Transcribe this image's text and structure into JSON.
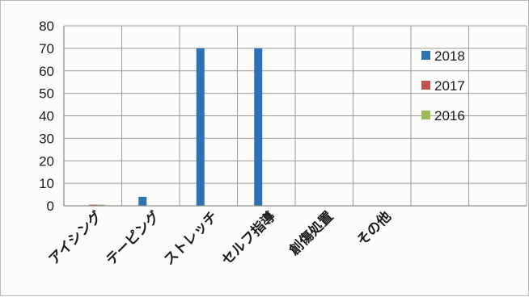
{
  "chart_data": {
    "type": "bar",
    "title": "",
    "xlabel": "",
    "ylabel": "",
    "ylim": [
      0,
      80
    ],
    "yticks": [
      0,
      10,
      20,
      30,
      40,
      50,
      60,
      70,
      80
    ],
    "grid": true,
    "legend_position": "right",
    "categories": [
      "アイシング",
      "テーピング",
      "ストレッチ",
      "セルフ指導",
      "創傷処置",
      "その他"
    ],
    "series": [
      {
        "name": "2018",
        "color": "#2c72b4",
        "values": [
          0,
          4,
          70,
          70,
          0,
          0
        ]
      },
      {
        "name": "2017",
        "color": "#c0504d",
        "values": [
          0.5,
          0,
          0,
          0,
          0,
          0
        ]
      },
      {
        "name": "2016",
        "color": "#9bbb59",
        "values": [
          0.5,
          0,
          0,
          0,
          0,
          0
        ]
      }
    ]
  }
}
